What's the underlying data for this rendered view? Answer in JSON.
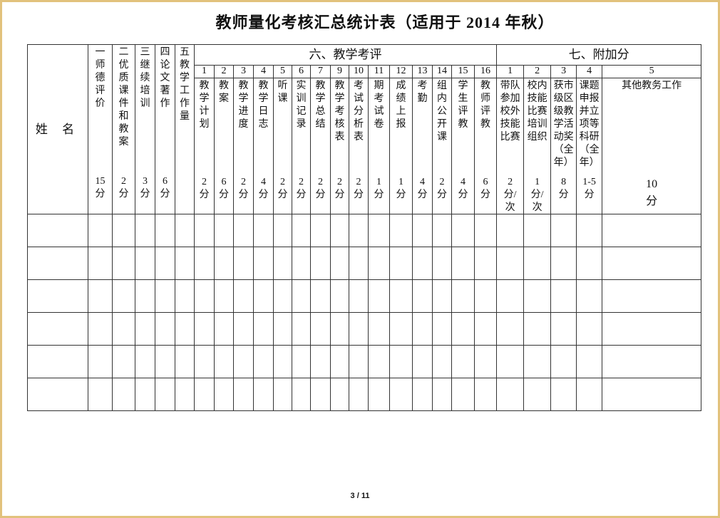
{
  "title": "教师量化考核汇总统计表（适用于 2014 年秋）",
  "name_header": "姓 名",
  "main_cols": [
    {
      "label": "一师德评价",
      "score": "15\n分"
    },
    {
      "label": "二优质课件和教案",
      "score": "2\n分"
    },
    {
      "label": "三继续培训",
      "score": "3\n分"
    },
    {
      "label": "四论文著作",
      "score": "6\n分"
    },
    {
      "label": "五教学工作量",
      "score": ""
    }
  ],
  "section6": {
    "title": "六、教学考评",
    "cols": [
      {
        "no": "1",
        "label": "教学计划",
        "score": "2\n分"
      },
      {
        "no": "2",
        "label": "教案",
        "score": "6\n分"
      },
      {
        "no": "3",
        "label": "教学进度",
        "score": "2\n分"
      },
      {
        "no": "4",
        "label": "教学日志",
        "score": "4\n分"
      },
      {
        "no": "5",
        "label": "听课",
        "score": "2\n分"
      },
      {
        "no": "6",
        "label": "实训记录",
        "score": "2\n分"
      },
      {
        "no": "7",
        "label": "教学总结",
        "score": "2\n分"
      },
      {
        "no": "9",
        "label": "教学考核表",
        "score": "2\n分"
      },
      {
        "no": "10",
        "label": "考试分析表",
        "score": "2\n分"
      },
      {
        "no": "11",
        "label": "期考试卷",
        "score": "1\n分"
      },
      {
        "no": "12",
        "label": "成绩上报",
        "score": "1\n分"
      },
      {
        "no": "13",
        "label": "考勤",
        "score": "4\n分"
      },
      {
        "no": "14",
        "label": "组内公开课",
        "score": "2\n分"
      },
      {
        "no": "15",
        "label": "学生评教",
        "score": "4\n分"
      },
      {
        "no": "16",
        "label": "教师评教",
        "score": "6\n分"
      }
    ]
  },
  "section7": {
    "title": "七、附加分",
    "cols": [
      {
        "no": "1",
        "label": "带队参加校外技能比赛",
        "score": "2\n分/\n次"
      },
      {
        "no": "2",
        "label": "校内技能比赛培训组织",
        "score": "1\n分/\n次"
      },
      {
        "no": "3",
        "label": "获市级区级教学活动奖（全年）",
        "score": "8\n分"
      },
      {
        "no": "4",
        "label": "课题申报并立项等科研（全年）",
        "score": "1-5\n分"
      },
      {
        "no": "5",
        "label": "其他教务工作",
        "score": "10\n分"
      }
    ]
  },
  "page_indicator": "3 / 11",
  "border_color": "#e2c27c"
}
